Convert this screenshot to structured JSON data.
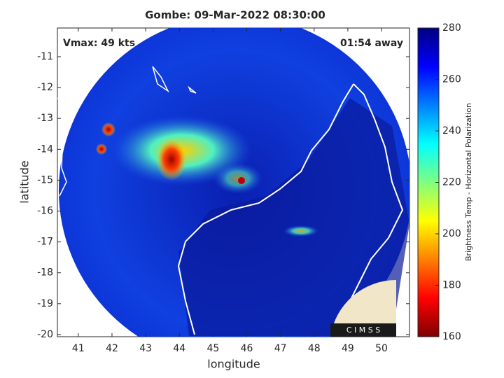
{
  "chart_data": {
    "type": "image",
    "title": "Gombe: 09-Mar-2022 08:30:00",
    "xlabel": "longitude",
    "ylabel": "latitude",
    "annotations": [
      "Vmax: 49 kts",
      "01:54 away"
    ],
    "logo_text": "C I M S S",
    "xlim": [
      40.38,
      50.83
    ],
    "xticks": [
      41,
      42,
      43,
      44,
      45,
      46,
      47,
      48,
      49,
      50
    ],
    "ylim": [
      -20.07,
      -10.07
    ],
    "yticks": [
      -11,
      -12,
      -13,
      -14,
      -15,
      -16,
      -17,
      -18,
      -19,
      -20
    ],
    "colorbar": {
      "label": "Brightness Temp - Horizontal Polarization",
      "lim": [
        160,
        280
      ],
      "ticks": [
        160,
        180,
        200,
        220,
        240,
        260,
        280
      ]
    }
  }
}
